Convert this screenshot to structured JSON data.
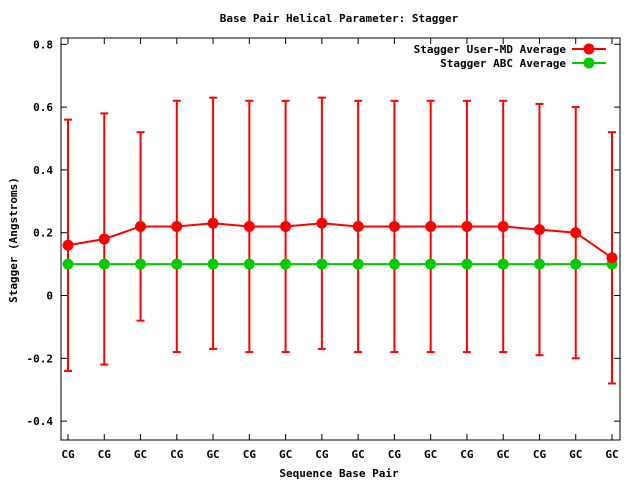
{
  "chart_data": {
    "type": "line",
    "title": "Base Pair Helical Parameter: Stagger",
    "xlabel": "Sequence Base Pair",
    "ylabel": "Stagger (Angstroms)",
    "categories": [
      "CG",
      "CG",
      "GC",
      "CG",
      "GC",
      "CG",
      "GC",
      "CG",
      "GC",
      "CG",
      "GC",
      "CG",
      "GC",
      "CG",
      "GC",
      "GC"
    ],
    "ylim": [
      -0.46,
      0.82
    ],
    "yticks": [
      -0.4,
      -0.2,
      0,
      0.2,
      0.4,
      0.6,
      0.8
    ],
    "ytick_labels": [
      "-0.4",
      "-0.2",
      "0",
      "0.2",
      "0.4",
      "0.6",
      "0.8"
    ],
    "grid": false,
    "legend_position": "top-right",
    "series": [
      {
        "name": "Stagger User-MD Average",
        "color": "#ff0000",
        "values": [
          0.16,
          0.18,
          0.22,
          0.22,
          0.23,
          0.22,
          0.22,
          0.23,
          0.22,
          0.22,
          0.22,
          0.22,
          0.22,
          0.21,
          0.2,
          0.12
        ],
        "error_low": [
          -0.24,
          -0.22,
          -0.08,
          -0.18,
          -0.17,
          -0.18,
          -0.18,
          -0.17,
          -0.18,
          -0.18,
          -0.18,
          -0.18,
          -0.18,
          -0.19,
          -0.2,
          -0.28
        ],
        "error_high": [
          0.56,
          0.58,
          0.52,
          0.62,
          0.63,
          0.62,
          0.62,
          0.63,
          0.62,
          0.62,
          0.62,
          0.62,
          0.62,
          0.61,
          0.6,
          0.52
        ]
      },
      {
        "name": "Stagger ABC Average",
        "color": "#00cc00",
        "values": [
          0.1,
          0.1,
          0.1,
          0.1,
          0.1,
          0.1,
          0.1,
          0.1,
          0.1,
          0.1,
          0.1,
          0.1,
          0.1,
          0.1,
          0.1,
          0.1
        ]
      }
    ]
  }
}
